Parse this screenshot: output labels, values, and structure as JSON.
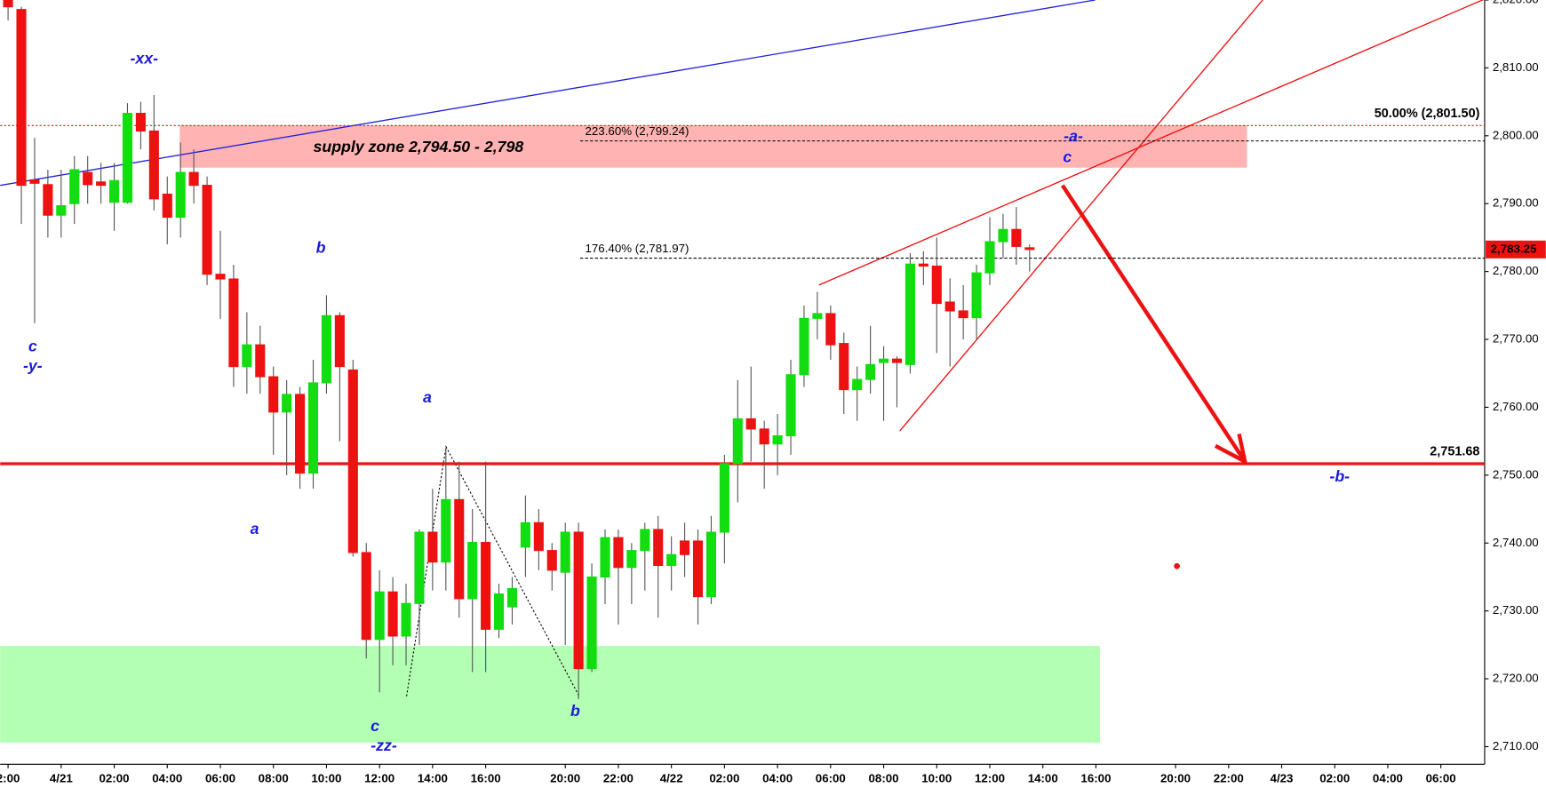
{
  "chart_data": {
    "type": "candlestick",
    "categories": [
      "2:00",
      null,
      null,
      null,
      "4/21",
      null,
      null,
      null,
      "02:00",
      null,
      null,
      null,
      "04:00",
      null,
      null,
      null,
      "06:00",
      null,
      null,
      null,
      "08:00",
      null,
      null,
      null,
      "10:00",
      null,
      null,
      null,
      "12:00",
      null,
      null,
      null,
      "14:00",
      null,
      null,
      null,
      "16:00",
      null,
      null,
      null,
      null,
      null,
      "20:00",
      null,
      null,
      null,
      "22:00",
      null,
      null,
      null,
      "4/22",
      null,
      null,
      null,
      "02:00",
      null,
      null,
      null,
      "04:00",
      null,
      null,
      null,
      "06:00",
      null,
      null,
      null,
      "08:00",
      null,
      null,
      null,
      "10:00",
      null,
      null,
      null,
      "12:00",
      null,
      null,
      null,
      "14:00",
      null,
      null,
      null,
      "16:00",
      null,
      null,
      null,
      null,
      null,
      "20:00",
      null,
      null,
      null,
      "22:00",
      null,
      null,
      null,
      "4/23",
      null,
      null,
      null,
      "02:00",
      null,
      null,
      null,
      "04:00",
      null,
      null,
      null,
      "06:00",
      null,
      null,
      null
    ],
    "open": [
      2820,
      2818.6,
      2793.5,
      2792.8,
      2788.3,
      2790,
      2794.6,
      2793.2,
      2790.2,
      2790.2,
      2803.3,
      2800.7,
      2791.4,
      2788,
      2794.6,
      2792.7,
      2779.6,
      2778.9,
      2766,
      2769.2,
      2764.5,
      2759.3,
      2761.9,
      2750.3,
      2763.6,
      2773.5,
      2765.5,
      2738.6,
      2725.8,
      2732.8,
      2726.3,
      2731.1,
      2741.6,
      2737.2,
      2746.4,
      2731.8,
      2740.1,
      2727.3,
      2730.6,
      2739.4,
      2743,
      2738.9,
      2735.7,
      2741.6,
      2721.5,
      2735,
      2740.8,
      2736.4,
      2738.9,
      2742,
      2736.7,
      2740.3,
      2740.3,
      2732.1,
      2741.6,
      2751.7,
      2758.3,
      2756.8,
      2754.6,
      2755.8,
      2764.8,
      2773.1,
      2773.8,
      2769.4,
      2762.6,
      2764.1,
      2766.6,
      2767.1,
      2766.3,
      2781.1,
      2780.8,
      2775.5,
      2774.2,
      2773.2,
      2779.8,
      2784.4,
      2786.2,
      2783.5,
      null,
      null,
      null,
      null,
      null,
      null,
      null,
      null,
      null,
      null,
      null,
      null,
      null,
      null,
      null,
      null,
      null,
      null,
      null,
      null,
      null,
      null,
      null,
      null,
      null,
      null,
      null,
      null,
      null,
      null,
      null,
      null,
      null,
      null
    ],
    "high": [
      2821,
      2819,
      2799.7,
      2795,
      2795,
      2797,
      2797,
      2796,
      2796,
      2804.8,
      2805,
      2806,
      2794,
      2799,
      2798,
      2794,
      2786,
      2781,
      2774,
      2772,
      2766,
      2764,
      2763,
      2767,
      2776.5,
      2774,
      2767,
      2740,
      2736,
      2735,
      2734,
      2742,
      2748,
      2754,
      2752,
      2745,
      2752,
      2734,
      2735,
      2747,
      2745,
      2740,
      2743,
      2743,
      2737,
      2742,
      2742,
      2740,
      2743,
      2744,
      2741,
      2743,
      2742,
      2744,
      2753,
      2764,
      2766,
      2758,
      2759,
      2767,
      2775,
      2777,
      2775,
      2771,
      2766,
      2772,
      2769,
      2767.5,
      2782.7,
      2783,
      2785,
      2779,
      2778,
      2781,
      2788,
      2788.5,
      2789.5,
      2784,
      null,
      null,
      null,
      null,
      null,
      null,
      null,
      null,
      null,
      null,
      null,
      null,
      null,
      null,
      null,
      null,
      null,
      null,
      null,
      null,
      null,
      null,
      null,
      null,
      null,
      null,
      null,
      null,
      null,
      null,
      null,
      null,
      null,
      null
    ],
    "low": [
      2817,
      2787,
      2772.4,
      2785,
      2785,
      2787,
      2790,
      2790,
      2786,
      2790,
      2798,
      2789,
      2784,
      2785,
      2790,
      2778,
      2773,
      2763,
      2762,
      2762,
      2753,
      2750,
      2748,
      2748,
      2762,
      2755,
      2738,
      2723,
      2718,
      2722,
      2722,
      2725,
      2733,
      2733,
      2729,
      2721,
      2721,
      2726,
      2728,
      2735,
      2736,
      2733,
      2725,
      2717,
      2721,
      2731,
      2728,
      2731,
      2733,
      2729,
      2733,
      2735,
      2728,
      2731,
      2737,
      2746,
      2752,
      2748,
      2750,
      2753,
      2763,
      2770,
      2767,
      2759,
      2758,
      2762,
      2758,
      2760,
      2765,
      2778,
      2768,
      2766,
      2770,
      2770,
      2778,
      2782,
      2781,
      2780,
      null,
      null,
      null,
      null,
      null,
      null,
      null,
      null,
      null,
      null,
      null,
      null,
      null,
      null,
      null,
      null,
      null,
      null,
      null,
      null,
      null,
      null,
      null,
      null,
      null,
      null,
      null,
      null,
      null,
      null,
      null,
      null,
      null,
      null
    ],
    "close": [
      2819,
      2792.7,
      2793,
      2788.3,
      2789.7,
      2795,
      2792.8,
      2792.7,
      2793.4,
      2803.3,
      2800.7,
      2790.7,
      2788,
      2794.6,
      2792.7,
      2779.6,
      2778.9,
      2766,
      2769.2,
      2764.5,
      2759.3,
      2761.9,
      2750.3,
      2763.6,
      2773.5,
      2766,
      2738.6,
      2725.8,
      2732.8,
      2726.3,
      2731.1,
      2741.6,
      2737.2,
      2746.4,
      2731.8,
      2740.1,
      2727.3,
      2732.5,
      2733.3,
      2743,
      2738.9,
      2736,
      2741.6,
      2721.5,
      2735,
      2740.8,
      2736.4,
      2738.9,
      2742,
      2736.7,
      2738.3,
      2738.3,
      2732.1,
      2741.6,
      2751.7,
      2758.3,
      2756.8,
      2754.6,
      2755.8,
      2764.8,
      2773.1,
      2773.8,
      2769.2,
      2762.6,
      2764.1,
      2766.3,
      2767.1,
      2766.6,
      2781.1,
      2780.8,
      2775.3,
      2774.2,
      2773.2,
      2779.8,
      2784.4,
      2786.2,
      2783.7,
      2783.25,
      null,
      null,
      null,
      null,
      null,
      null,
      null,
      null,
      null,
      null,
      null,
      null,
      null,
      null,
      null,
      null,
      null,
      null,
      null,
      null,
      null,
      null,
      null,
      null,
      null,
      null,
      null,
      null,
      null,
      null,
      null,
      null,
      null,
      null
    ],
    "up_color": "#11dd11",
    "down_color": "#ee1111",
    "ylim": [
      2707.4,
      2820
    ],
    "yticks": [
      {
        "value": 2710,
        "label": "2,710.00"
      },
      {
        "value": 2720,
        "label": "2,720.00"
      },
      {
        "value": 2730,
        "label": "2,730.00"
      },
      {
        "value": 2740,
        "label": "2,740.00"
      },
      {
        "value": 2750,
        "label": "2,750.00"
      },
      {
        "value": 2760,
        "label": "2,760.00"
      },
      {
        "value": 2770,
        "label": "2,770.00"
      },
      {
        "value": 2780,
        "label": "2,780.00"
      },
      {
        "value": 2790,
        "label": "2,790.00"
      },
      {
        "value": 2800,
        "label": "2,800.00"
      },
      {
        "value": 2810,
        "label": "2,810.00"
      },
      {
        "value": 2820,
        "label": "2,820.00"
      }
    ],
    "levels": [
      {
        "value": 2801.5,
        "label": "50.00% (2,801.50)",
        "color": "#ee1111",
        "style": "dotted"
      },
      {
        "value": 2799.24,
        "label": "223.60% (2,799.24)",
        "color": "#000000",
        "style": "dashed"
      },
      {
        "value": 2781.97,
        "label": "176.40% (2,781.97)",
        "color": "#000000",
        "style": "dashed"
      },
      {
        "value": 2751.68,
        "label": "2,751.68",
        "color": "#ee1111",
        "style": "solid"
      }
    ],
    "last_price": {
      "value": 2783.25,
      "label": "2,783.25",
      "color": "#ee1111"
    },
    "supply_zone_label": "supply zone 2,794.50 - 2,798",
    "annotations": [
      "-xx-",
      "c",
      "-y-",
      "b",
      "a",
      "a",
      "c",
      "-zz-",
      "b",
      "-a-",
      "c",
      "-b-"
    ]
  }
}
